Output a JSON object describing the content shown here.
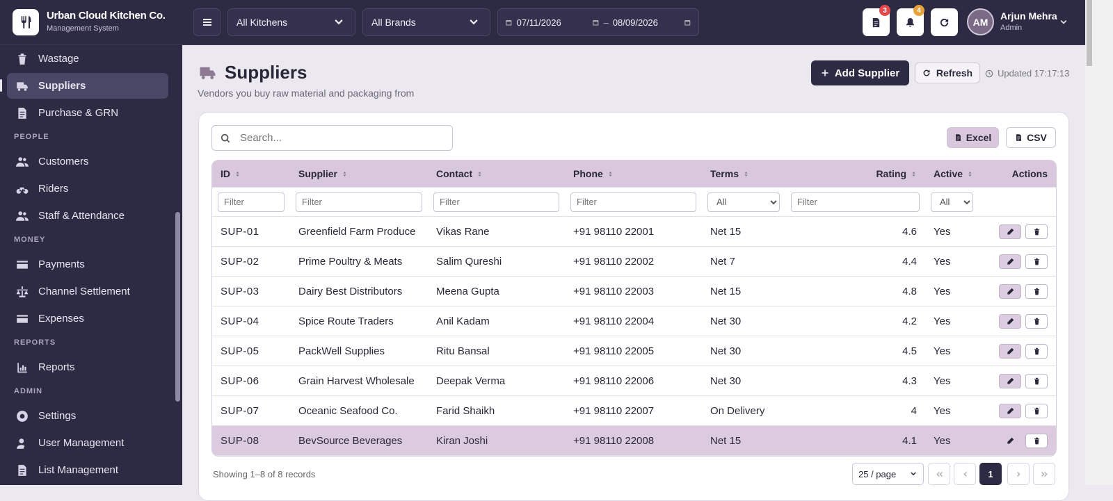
{
  "brand": {
    "name": "Urban Cloud Kitchen Co.",
    "subtitle": "Management System"
  },
  "nav": {
    "items": [
      "Wastage",
      "Suppliers",
      "Purchase & GRN"
    ],
    "active_index": 1,
    "sections": [
      {
        "title": "PEOPLE",
        "items": [
          "Customers",
          "Riders",
          "Staff & Attendance"
        ]
      },
      {
        "title": "MONEY",
        "items": [
          "Payments",
          "Channel Settlement",
          "Expenses"
        ]
      },
      {
        "title": "REPORTS",
        "items": [
          "Reports"
        ]
      },
      {
        "title": "ADMIN",
        "items": [
          "Settings",
          "User Management",
          "List Management"
        ]
      }
    ]
  },
  "topbar": {
    "kitchen_select": "All Kitchens",
    "brand_select": "All Brands",
    "date_from": "07/11/2026",
    "date_separator": "–",
    "date_to": "08/09/2026",
    "orders_badge": 3,
    "notifications_badge": 4,
    "user": {
      "initials": "AM",
      "name": "Arjun Mehra",
      "role": "Admin"
    }
  },
  "page": {
    "title": "Suppliers",
    "subtitle": "Vendors you buy raw material and packaging from",
    "add_button": "Add Supplier",
    "refresh_button": "Refresh",
    "updated": "Updated 17:17:13"
  },
  "table": {
    "search_placeholder": "Search...",
    "export_excel": "Excel",
    "export_csv": "CSV",
    "columns": [
      "ID",
      "Supplier",
      "Contact",
      "Phone",
      "Terms",
      "Rating",
      "Active",
      "Actions"
    ],
    "filter_placeholder": "Filter",
    "select_all": "All",
    "rows": [
      [
        "SUP-01",
        "Greenfield Farm Produce",
        "Vikas Rane",
        "+91 98110 22001",
        "Net 15",
        4.6,
        "Yes"
      ],
      [
        "SUP-02",
        "Prime Poultry & Meats",
        "Salim Qureshi",
        "+91 98110 22002",
        "Net 7",
        4.4,
        "Yes"
      ],
      [
        "SUP-03",
        "Dairy Best Distributors",
        "Meena Gupta",
        "+91 98110 22003",
        "Net 15",
        4.8,
        "Yes"
      ],
      [
        "SUP-04",
        "Spice Route Traders",
        "Anil Kadam",
        "+91 98110 22004",
        "Net 30",
        4.2,
        "Yes"
      ],
      [
        "SUP-05",
        "PackWell Supplies",
        "Ritu Bansal",
        "+91 98110 22005",
        "Net 30",
        4.5,
        "Yes"
      ],
      [
        "SUP-06",
        "Grain Harvest Wholesale",
        "Deepak Verma",
        "+91 98110 22006",
        "Net 30",
        4.3,
        "Yes"
      ],
      [
        "SUP-07",
        "Oceanic Seafood Co.",
        "Farid Shaikh",
        "+91 98110 22007",
        "On Delivery",
        4,
        "Yes"
      ],
      [
        "SUP-08",
        "BevSource Beverages",
        "Kiran Joshi",
        "+91 98110 22008",
        "Net 15",
        4.1,
        "Yes"
      ]
    ],
    "highlighted_row": 7,
    "footer": {
      "summary": "Showing 1–8 of 8 records",
      "page_size": "25 / page",
      "current_page": 1
    }
  }
}
